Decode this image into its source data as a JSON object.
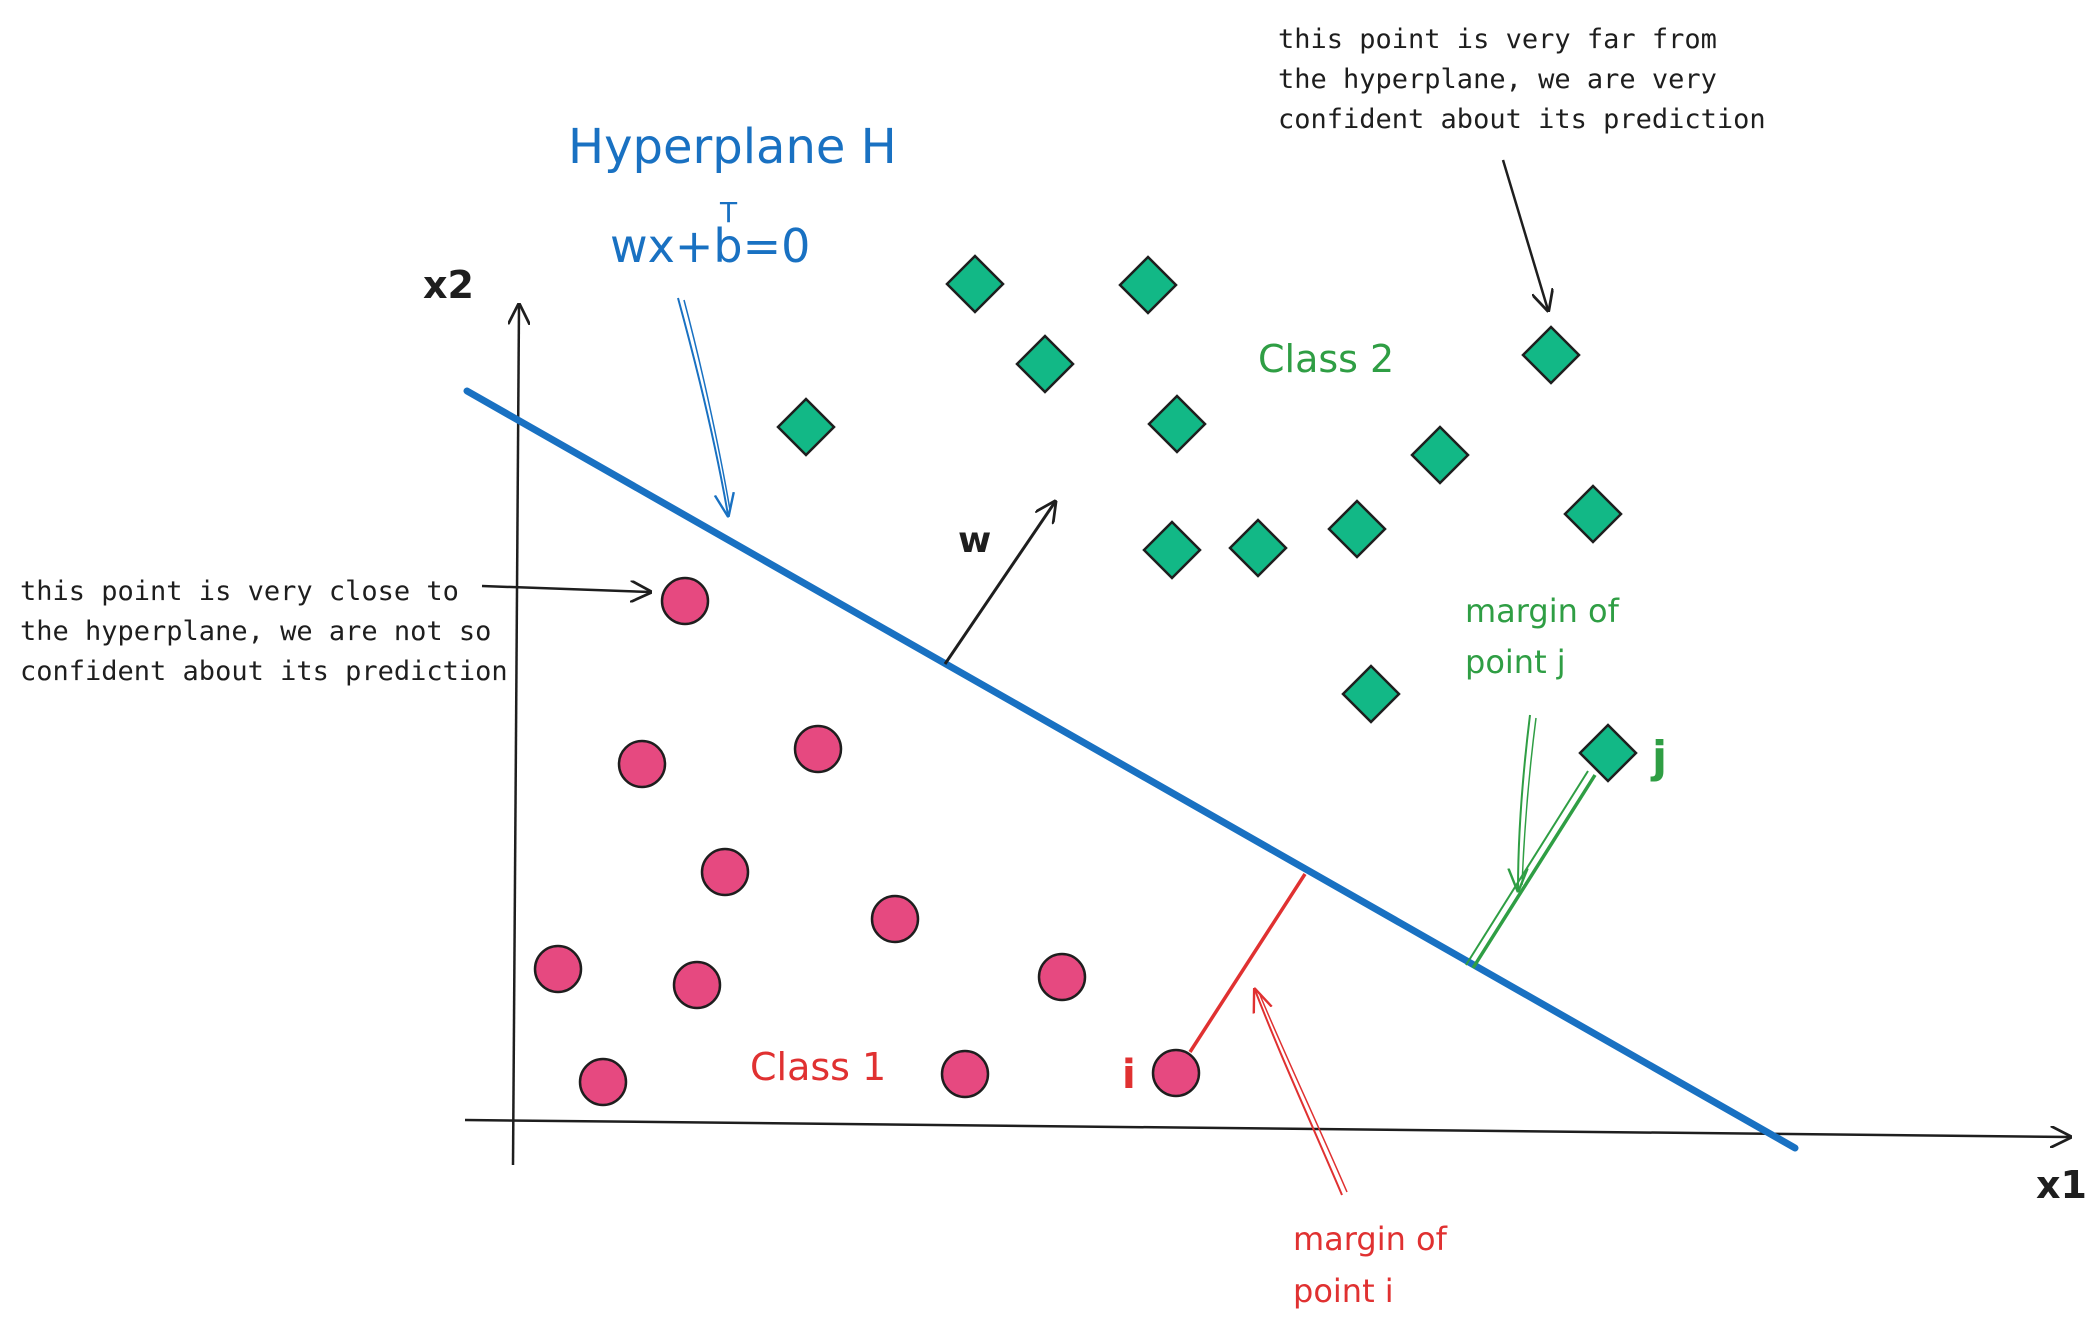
{
  "axes": {
    "x_label": "x1",
    "y_label": "x2"
  },
  "hyperplane": {
    "title": "Hyperplane H",
    "equation": "wx+b=0",
    "superscript": "T",
    "normal_label": "w"
  },
  "classes": {
    "class1_label": "Class 1",
    "class2_label": "Class 2"
  },
  "points": {
    "i_label": "i",
    "j_label": "j"
  },
  "annotations": {
    "close_point_lines": [
      "this point is very close to",
      "the hyperplane, we are not so",
      "confident about its prediction"
    ],
    "far_point_lines": [
      "this point is very far from",
      "the hyperplane, we are very",
      "confident about its prediction"
    ],
    "margin_i_lines": [
      "margin of",
      "point i"
    ],
    "margin_j_lines": [
      "margin of",
      "point j"
    ]
  },
  "colors": {
    "hyperplane": "#1971c2",
    "class1_fill": "#e64980",
    "class2_fill": "#12b886",
    "margin_i": "#e03131",
    "margin_j": "#2f9e44",
    "ink": "#1e1e1e"
  }
}
